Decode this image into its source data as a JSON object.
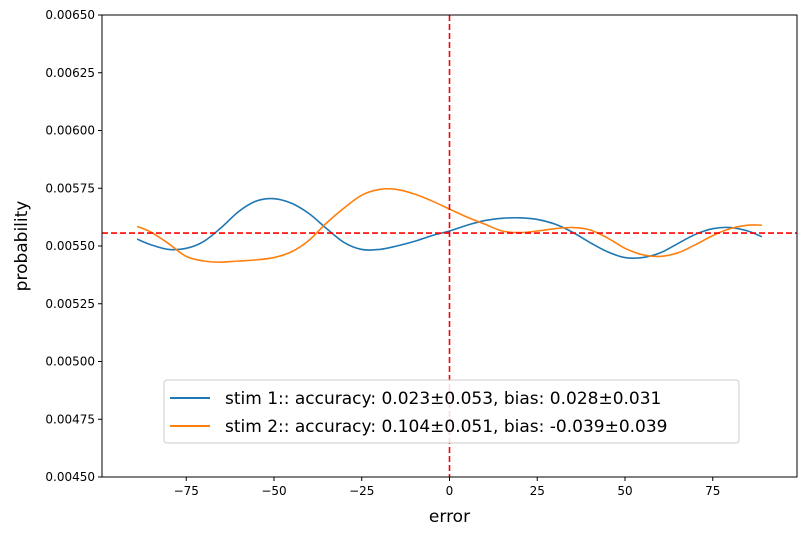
{
  "chart_data": {
    "type": "line",
    "xlabel": "error",
    "ylabel": "probability",
    "xlim": [
      -99,
      99
    ],
    "ylim": [
      0.0045,
      0.0065
    ],
    "x_ticks": [
      -75,
      -50,
      -25,
      0,
      25,
      50,
      75
    ],
    "x_tick_labels": [
      "−75",
      "−50",
      "−25",
      "0",
      "25",
      "50",
      "75"
    ],
    "y_ticks": [
      0.0045,
      0.00475,
      0.005,
      0.00525,
      0.0055,
      0.00575,
      0.006,
      0.00625,
      0.0065
    ],
    "y_tick_labels": [
      "0.00450",
      "0.00475",
      "0.00500",
      "0.00525",
      "0.00550",
      "0.00575",
      "0.00600",
      "0.00625",
      "0.00650"
    ],
    "grid": false,
    "legend_position": "lower-center",
    "series": [
      {
        "name": "stim 1:: accuracy: 0.023±0.053, bias: 0.028±0.031",
        "color": "#1f77b4",
        "x": [
          -89,
          -85,
          -80,
          -75,
          -70,
          -65,
          -60,
          -55,
          -50,
          -45,
          -40,
          -35,
          -30,
          -25,
          -20,
          -15,
          -10,
          -5,
          0,
          5,
          10,
          15,
          20,
          25,
          30,
          35,
          40,
          45,
          50,
          55,
          60,
          65,
          70,
          75,
          80,
          85,
          89
        ],
        "y": [
          0.00553,
          0.005505,
          0.005485,
          0.00549,
          0.00552,
          0.00558,
          0.00565,
          0.005695,
          0.005705,
          0.005685,
          0.00564,
          0.005575,
          0.005515,
          0.005485,
          0.005485,
          0.0055,
          0.00552,
          0.005545,
          0.005565,
          0.00559,
          0.00561,
          0.00562,
          0.005622,
          0.005615,
          0.005595,
          0.00556,
          0.005515,
          0.005475,
          0.00545,
          0.00545,
          0.00547,
          0.00551,
          0.00555,
          0.005575,
          0.00558,
          0.005565,
          0.00554
        ]
      },
      {
        "name": "stim 2:: accuracy: 0.104±0.051, bias: -0.039±0.039",
        "color": "#ff7f0e",
        "x": [
          -89,
          -85,
          -80,
          -75,
          -70,
          -65,
          -60,
          -55,
          -50,
          -45,
          -40,
          -35,
          -30,
          -25,
          -20,
          -15,
          -10,
          -5,
          0,
          5,
          10,
          15,
          20,
          25,
          30,
          35,
          40,
          45,
          50,
          55,
          60,
          65,
          70,
          75,
          80,
          85,
          89
        ],
        "y": [
          0.005585,
          0.00556,
          0.00551,
          0.005455,
          0.005435,
          0.00543,
          0.005435,
          0.00544,
          0.00545,
          0.005475,
          0.005525,
          0.0056,
          0.005665,
          0.00572,
          0.005745,
          0.005745,
          0.005725,
          0.005695,
          0.00566,
          0.005625,
          0.005595,
          0.005565,
          0.005558,
          0.005565,
          0.005575,
          0.00558,
          0.00557,
          0.005535,
          0.00549,
          0.005462,
          0.005455,
          0.00547,
          0.005505,
          0.005545,
          0.005575,
          0.00559,
          0.00559
        ]
      }
    ],
    "reference_lines": {
      "vertical_x": 0,
      "horizontal_y": 0.005556,
      "color": "#ff0000",
      "style": "dashed"
    }
  }
}
